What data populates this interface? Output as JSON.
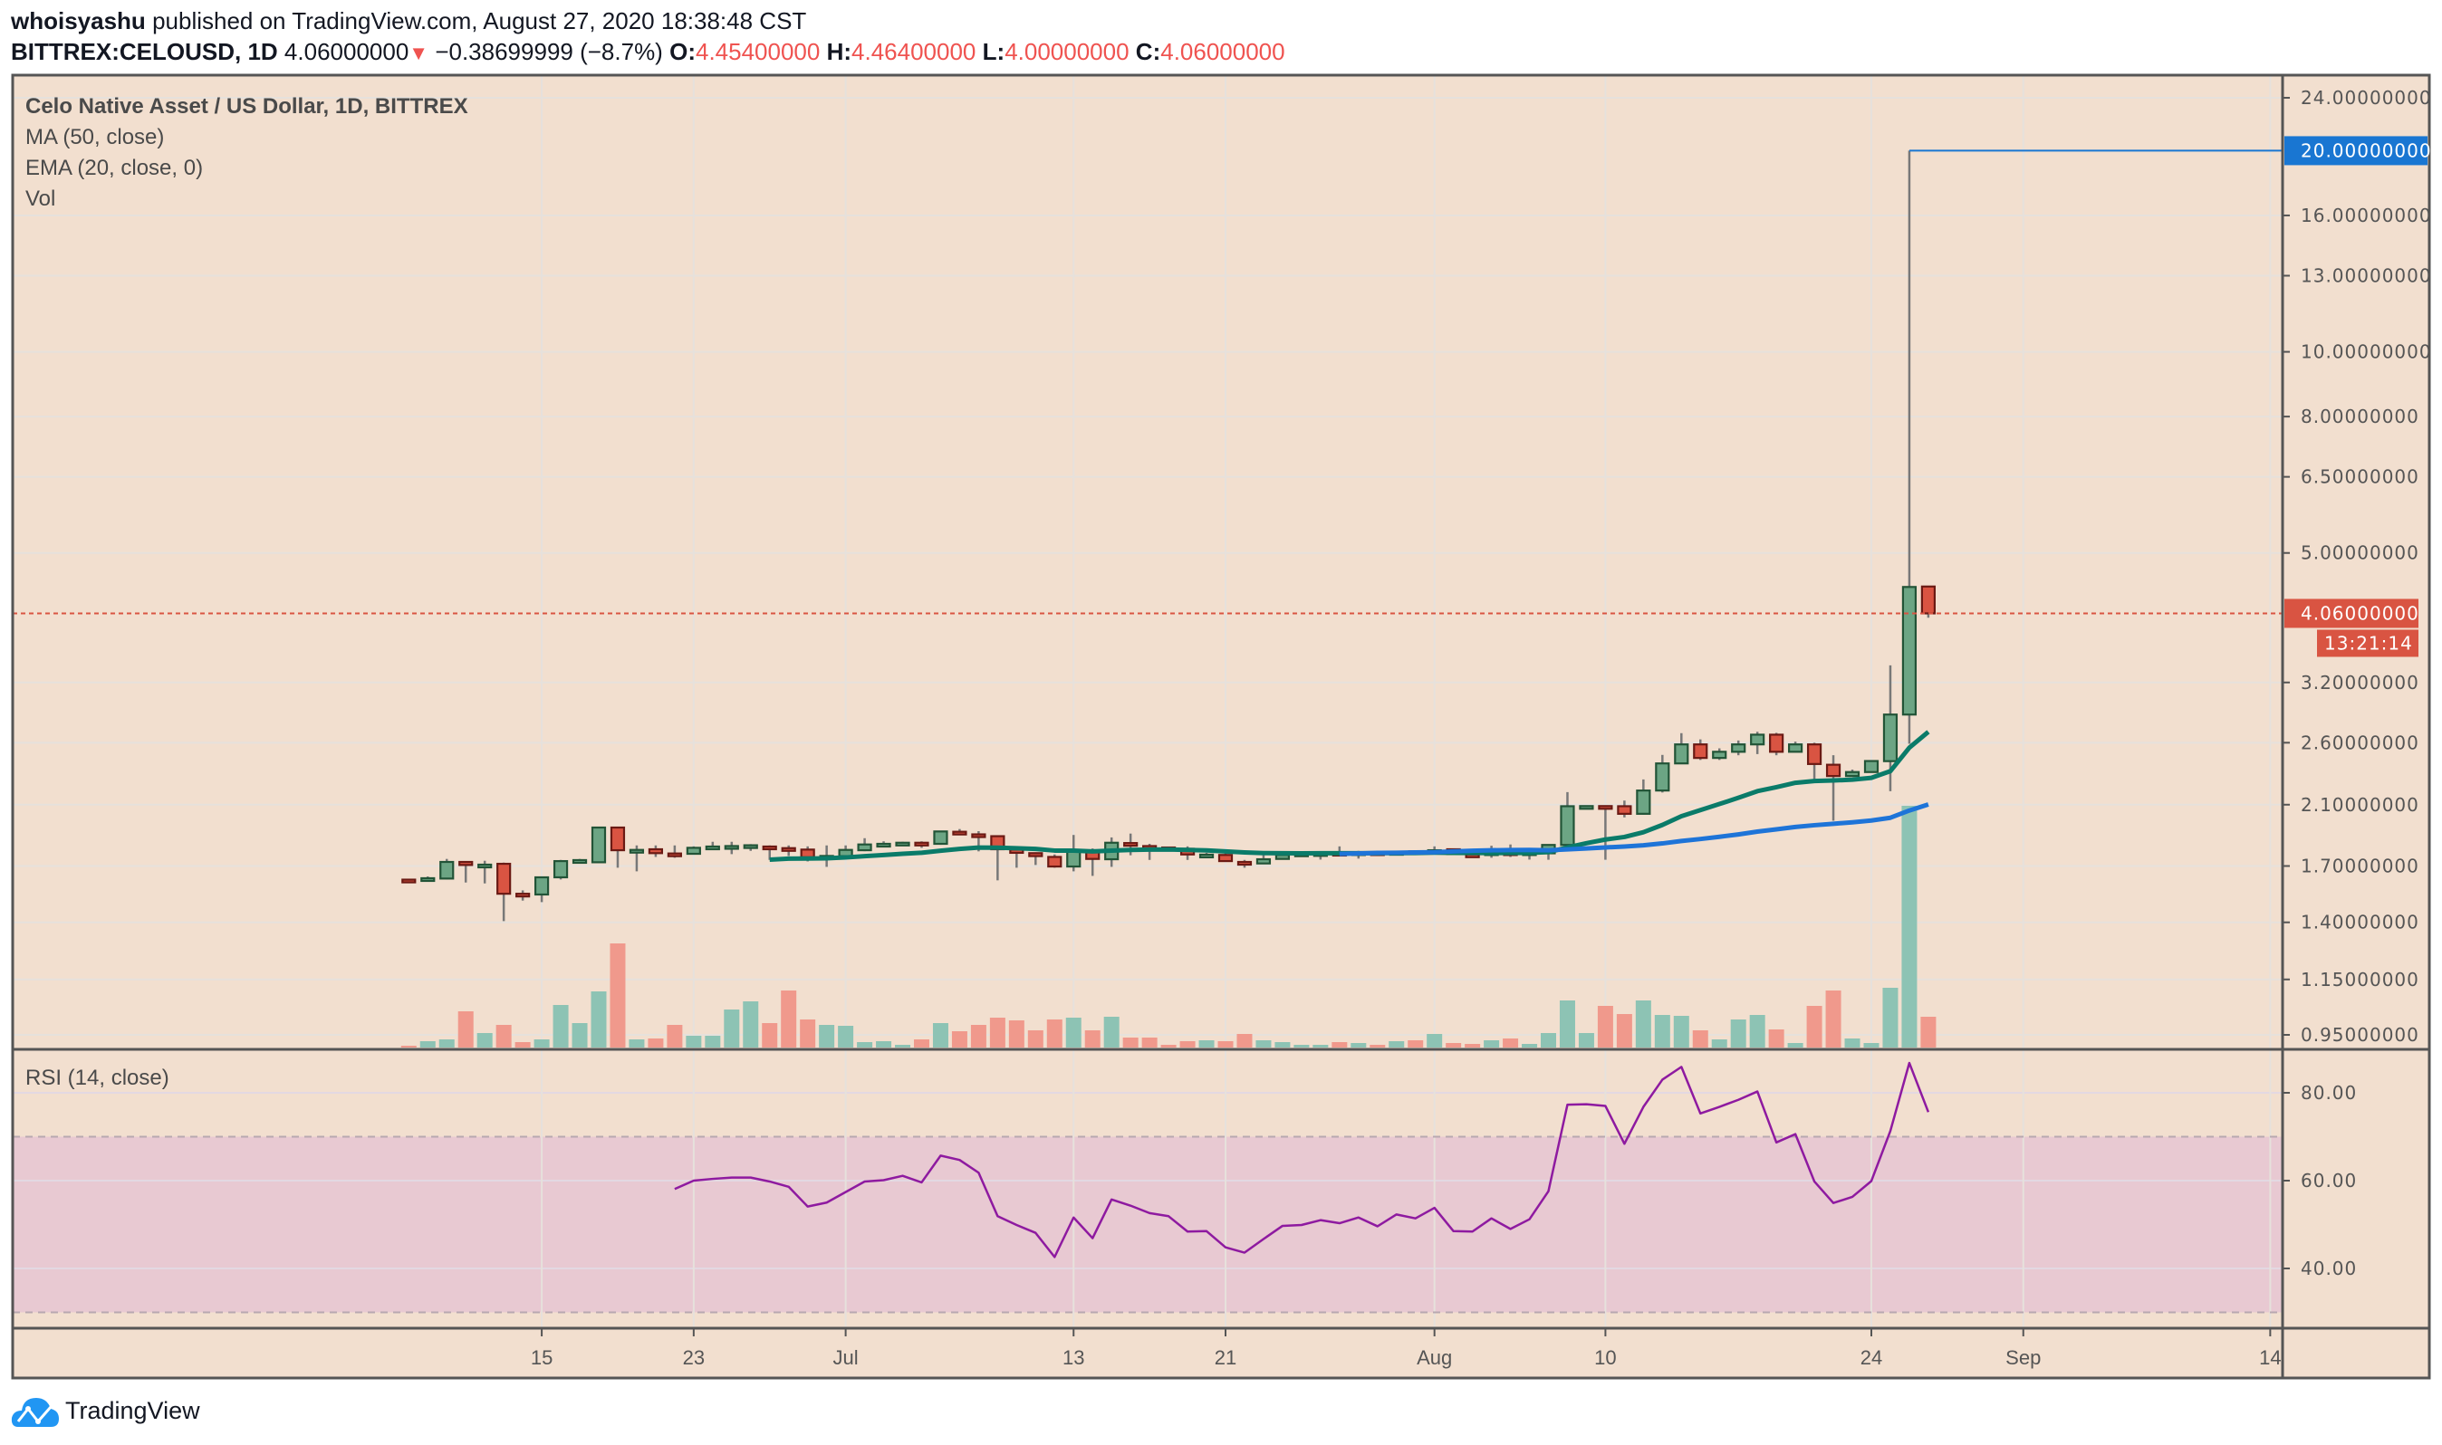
{
  "header": {
    "author": "whoisyashu",
    "published": "published on TradingView.com, August 27, 2020 18:38:48 CST",
    "symbol": "BITTREX:CELOUSD, 1D",
    "last": "4.06000000",
    "direction_icon": "triangle-down",
    "change": "−0.38699999 (−8.7%)",
    "o_label": "O:",
    "o": "4.45400000",
    "h_label": "H:",
    "h": "4.46400000",
    "l_label": "L:",
    "l": "4.00000000",
    "c_label": "C:",
    "c": "4.06000000"
  },
  "legend": {
    "title": "Celo Native Asset / US Dollar, 1D, BITTREX",
    "ma": "MA (50, close)",
    "ema": "EMA (20, close, 0)",
    "vol": "Vol",
    "rsi": "RSI (14, close)"
  },
  "price_labels": {
    "current": "4.06000000",
    "countdown": "13:21:14",
    "line": "20.00000000"
  },
  "footer": {
    "brand": "TradingView",
    "logo_icon": "tradingview-cloud-logo"
  },
  "colors": {
    "background": "#f2dfcf",
    "grid": "#e6e1dc",
    "up_body": "#6ca584",
    "up_border": "#225437",
    "down_body": "#d95442",
    "down_border": "#6b1a14",
    "wick": "#787878",
    "vol_up": "#8dc3b4",
    "vol_down": "#f0998c",
    "ema": "#0a7b69",
    "ma": "#1e74d8",
    "rsi": "#8e1aa0",
    "rsi_band": "#e8c9d2",
    "current_price": "#d95442",
    "line_label": "#1976d2"
  },
  "chart_data": {
    "type": "candlestick",
    "title": "Celo Native Asset / US Dollar, 1D, BITTREX",
    "start_date": "2020-06-08",
    "ohlc": [
      [
        1.622,
        1.623,
        1.618,
        1.62
      ],
      [
        1.626,
        1.64,
        1.613,
        1.63
      ],
      [
        1.628,
        1.742,
        1.623,
        1.724
      ],
      [
        1.724,
        1.726,
        1.606,
        1.706
      ],
      [
        1.706,
        1.731,
        1.601,
        1.708
      ],
      [
        1.713,
        1.72,
        1.406,
        1.545
      ],
      [
        1.545,
        1.563,
        1.509,
        1.543
      ],
      [
        1.541,
        1.635,
        1.501,
        1.635
      ],
      [
        1.635,
        1.736,
        1.623,
        1.729
      ],
      [
        1.726,
        1.742,
        1.722,
        1.735
      ],
      [
        1.722,
        1.941,
        1.718,
        1.941
      ],
      [
        1.941,
        1.941,
        1.69,
        1.795
      ],
      [
        1.793,
        1.825,
        1.669,
        1.797
      ],
      [
        1.801,
        1.825,
        1.754,
        1.777
      ],
      [
        1.775,
        1.825,
        1.749,
        1.773
      ],
      [
        1.773,
        1.819,
        1.768,
        1.81
      ],
      [
        1.814,
        1.848,
        1.797,
        1.818
      ],
      [
        1.817,
        1.848,
        1.771,
        1.821
      ],
      [
        1.821,
        1.833,
        1.791,
        1.826
      ],
      [
        1.818,
        1.825,
        1.736,
        1.814
      ],
      [
        1.808,
        1.825,
        1.76,
        1.804
      ],
      [
        1.799,
        1.819,
        1.727,
        1.752
      ],
      [
        1.755,
        1.825,
        1.695,
        1.76
      ],
      [
        1.759,
        1.825,
        1.757,
        1.797
      ],
      [
        1.795,
        1.871,
        1.789,
        1.831
      ],
      [
        1.831,
        1.851,
        1.816,
        1.835
      ],
      [
        1.838,
        1.848,
        1.823,
        1.842
      ],
      [
        1.842,
        1.851,
        1.81,
        1.838
      ],
      [
        1.835,
        1.917,
        1.829,
        1.915
      ],
      [
        1.913,
        1.931,
        1.896,
        1.909
      ],
      [
        1.896,
        1.917,
        1.788,
        1.892
      ],
      [
        1.884,
        1.886,
        1.618,
        1.801
      ],
      [
        1.799,
        1.799,
        1.69,
        1.779
      ],
      [
        1.777,
        1.782,
        1.706,
        1.759
      ],
      [
        1.754,
        1.769,
        1.69,
        1.697
      ],
      [
        1.697,
        1.892,
        1.669,
        1.788
      ],
      [
        1.788,
        1.806,
        1.643,
        1.742
      ],
      [
        1.74,
        1.876,
        1.695,
        1.842
      ],
      [
        1.84,
        1.901,
        1.764,
        1.836
      ],
      [
        1.821,
        1.835,
        1.736,
        1.817
      ],
      [
        1.812,
        1.812,
        1.789,
        1.808
      ],
      [
        1.804,
        1.819,
        1.736,
        1.769
      ],
      [
        1.766,
        1.779,
        1.76,
        1.768
      ],
      [
        1.766,
        1.779,
        1.729,
        1.729
      ],
      [
        1.724,
        1.736,
        1.69,
        1.72
      ],
      [
        1.715,
        1.769,
        1.715,
        1.74
      ],
      [
        1.742,
        1.78,
        1.74,
        1.766
      ],
      [
        1.771,
        1.78,
        1.754,
        1.775
      ],
      [
        1.773,
        1.78,
        1.738,
        1.777
      ],
      [
        1.779,
        1.819,
        1.773,
        1.776
      ],
      [
        1.778,
        1.791,
        1.744,
        1.782
      ],
      [
        1.782,
        1.786,
        1.771,
        1.778
      ],
      [
        1.78,
        1.786,
        1.776,
        1.784
      ],
      [
        1.788,
        1.79,
        1.78,
        1.784
      ],
      [
        1.791,
        1.819,
        1.786,
        1.795
      ],
      [
        1.801,
        1.806,
        1.768,
        1.771
      ],
      [
        1.769,
        1.801,
        1.76,
        1.766
      ],
      [
        1.778,
        1.823,
        1.749,
        1.782
      ],
      [
        1.782,
        1.831,
        1.754,
        1.778
      ],
      [
        1.778,
        1.806,
        1.738,
        1.782
      ],
      [
        1.776,
        1.829,
        1.737,
        1.828
      ],
      [
        1.828,
        2.193,
        1.828,
        2.089
      ],
      [
        2.087,
        2.092,
        2.08,
        2.09
      ],
      [
        2.09,
        2.092,
        1.737,
        2.088
      ],
      [
        2.089,
        2.13,
        2.01,
        2.035
      ],
      [
        2.035,
        2.291,
        2.03,
        2.205
      ],
      [
        2.205,
        2.493,
        2.19,
        2.421
      ],
      [
        2.421,
        2.687,
        2.42,
        2.585
      ],
      [
        2.585,
        2.63,
        2.45,
        2.467
      ],
      [
        2.467,
        2.55,
        2.45,
        2.52
      ],
      [
        2.52,
        2.62,
        2.49,
        2.585
      ],
      [
        2.585,
        2.7,
        2.5,
        2.673
      ],
      [
        2.673,
        2.69,
        2.49,
        2.52
      ],
      [
        2.52,
        2.61,
        2.52,
        2.585
      ],
      [
        2.585,
        2.6,
        2.263,
        2.416
      ],
      [
        2.41,
        2.49,
        1.987,
        2.318
      ],
      [
        2.318,
        2.37,
        2.318,
        2.35
      ],
      [
        2.35,
        2.445,
        2.35,
        2.441
      ],
      [
        2.44,
        3.395,
        2.2,
        2.865
      ],
      [
        2.865,
        20.0,
        2.59,
        4.447
      ],
      [
        4.454,
        4.464,
        4.0,
        4.06
      ]
    ],
    "volume": [
      6,
      21,
      27,
      120,
      48,
      75,
      18,
      27,
      141,
      81,
      186,
      345,
      27,
      30,
      75,
      39,
      39,
      126,
      153,
      81,
      189,
      93,
      75,
      72,
      18,
      21,
      9,
      27,
      81,
      54,
      75,
      99,
      90,
      57,
      93,
      99,
      57,
      102,
      33,
      33,
      9,
      21,
      24,
      21,
      45,
      24,
      18,
      9,
      9,
      18,
      15,
      9,
      21,
      24,
      45,
      15,
      12,
      24,
      30,
      12,
      48,
      156,
      48,
      138,
      111,
      156,
      108,
      105,
      57,
      27,
      93,
      108,
      60,
      15,
      138,
      189,
      30,
      15,
      198,
      801,
      102
    ],
    "volume_colors": [
      "down",
      "up",
      "up",
      "down",
      "up",
      "down",
      "down",
      "up",
      "up",
      "up",
      "up",
      "down",
      "up",
      "down",
      "down",
      "up",
      "up",
      "up",
      "up",
      "down",
      "down",
      "down",
      "up",
      "up",
      "up",
      "up",
      "up",
      "down",
      "up",
      "down",
      "down",
      "down",
      "down",
      "down",
      "down",
      "up",
      "down",
      "up",
      "down",
      "down",
      "down",
      "down",
      "up",
      "down",
      "down",
      "up",
      "up",
      "up",
      "up",
      "down",
      "up",
      "down",
      "up",
      "down",
      "up",
      "down",
      "down",
      "up",
      "down",
      "up",
      "up",
      "up",
      "up",
      "down",
      "down",
      "up",
      "up",
      "up",
      "down",
      "up",
      "up",
      "up",
      "down",
      "up",
      "down",
      "down",
      "up",
      "up",
      "up",
      "up",
      "down"
    ],
    "indicators": {
      "ma_period": 50,
      "ema_period": 20
    },
    "rsi": {
      "period": 14,
      "start_index": 14,
      "values": [
        58.1,
        60.0,
        60.4,
        60.7,
        60.7,
        59.8,
        58.6,
        54.1,
        55.0,
        57.4,
        59.8,
        60.1,
        61.1,
        59.6,
        65.7,
        64.7,
        61.8,
        51.9,
        49.9,
        48.1,
        42.6,
        51.6,
        46.9,
        55.7,
        54.3,
        52.6,
        51.9,
        48.4,
        48.5,
        44.8,
        43.6,
        46.7,
        49.7,
        49.9,
        51.0,
        50.3,
        51.6,
        49.6,
        52.3,
        51.4,
        53.8,
        48.5,
        48.4,
        51.4,
        49.0,
        51.2,
        57.6,
        77.3,
        77.4,
        77.0,
        68.4,
        76.8,
        83.0,
        85.9,
        75.3,
        76.8,
        78.4,
        80.3,
        68.7,
        70.6,
        59.8,
        54.9,
        56.3,
        59.9,
        71.3,
        86.8,
        75.6
      ],
      "bands": [
        30,
        70
      ],
      "ylim": [
        25,
        92
      ]
    },
    "price_axis": {
      "scale": "log",
      "ylim": [
        0.95,
        24
      ],
      "ticks": [
        {
          "value": 24,
          "label": "24.00000000"
        },
        {
          "value": 16,
          "label": "16.00000000"
        },
        {
          "value": 13,
          "label": "13.00000000"
        },
        {
          "value": 10,
          "label": "10.00000000"
        },
        {
          "value": 8,
          "label": "8.00000000"
        },
        {
          "value": 6.5,
          "label": "6.50000000"
        },
        {
          "value": 5,
          "label": "5.00000000"
        },
        {
          "value": 3.2,
          "label": "3.20000000"
        },
        {
          "value": 2.6,
          "label": "2.60000000"
        },
        {
          "value": 2.1,
          "label": "2.10000000"
        },
        {
          "value": 1.7,
          "label": "1.70000000"
        },
        {
          "value": 1.4,
          "label": "1.40000000"
        },
        {
          "value": 1.15,
          "label": "1.15000000"
        },
        {
          "value": 0.95,
          "label": "0.95000000"
        }
      ],
      "current_price": 4.06,
      "horizontal_line": 20.0
    },
    "rsi_axis": {
      "ticks": [
        {
          "value": 80,
          "label": "80.00"
        },
        {
          "value": 60,
          "label": "60.00"
        },
        {
          "value": 40,
          "label": "40.00"
        }
      ]
    },
    "time_axis": {
      "labels": [
        {
          "date": "2020-06-15",
          "label": "15"
        },
        {
          "date": "2020-06-23",
          "label": "23"
        },
        {
          "date": "2020-07-01",
          "label": "Jul"
        },
        {
          "date": "2020-07-13",
          "label": "13"
        },
        {
          "date": "2020-07-21",
          "label": "21"
        },
        {
          "date": "2020-08-01",
          "label": "Aug"
        },
        {
          "date": "2020-08-10",
          "label": "10"
        },
        {
          "date": "2020-08-24",
          "label": "24"
        },
        {
          "date": "2020-09-01",
          "label": "Sep"
        },
        {
          "date": "2020-09-14",
          "label": "14"
        }
      ]
    }
  }
}
